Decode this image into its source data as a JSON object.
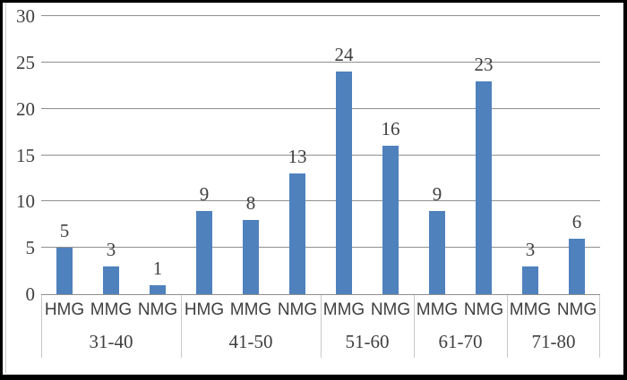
{
  "colors": {
    "bar": "#4F81BD",
    "gridline": "#8f8f8f",
    "axis_line": "#8f8f8f",
    "category_separator": "#c9c9c9",
    "text": "#3f3f3f",
    "frame_border": "#000000",
    "background": "#ffffff"
  },
  "chart_data": {
    "type": "bar",
    "title": "",
    "xlabel": "",
    "ylabel": "",
    "ylim": [
      0,
      30
    ],
    "yticks": [
      0,
      5,
      10,
      15,
      20,
      25,
      30
    ],
    "grid": true,
    "legend": false,
    "data_labels": true,
    "groups": [
      {
        "label": "31-40",
        "bars": [
          {
            "label": "HMG",
            "value": 5
          },
          {
            "label": "MMG",
            "value": 3
          },
          {
            "label": "NMG",
            "value": 1
          }
        ]
      },
      {
        "label": "41-50",
        "bars": [
          {
            "label": "HMG",
            "value": 9
          },
          {
            "label": "MMG",
            "value": 8
          },
          {
            "label": "NMG",
            "value": 13
          }
        ]
      },
      {
        "label": "51-60",
        "bars": [
          {
            "label": "MMG",
            "value": 24
          },
          {
            "label": "NMG",
            "value": 16
          }
        ]
      },
      {
        "label": "61-70",
        "bars": [
          {
            "label": "MMG",
            "value": 9
          },
          {
            "label": "NMG",
            "value": 23
          }
        ]
      },
      {
        "label": "71-80",
        "bars": [
          {
            "label": "MMG",
            "value": 3
          },
          {
            "label": "NMG",
            "value": 6
          }
        ]
      }
    ]
  }
}
